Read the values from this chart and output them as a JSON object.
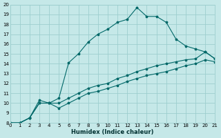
{
  "xlabel": "Humidex (Indice chaleur)",
  "xlim": [
    0,
    21
  ],
  "ylim": [
    8,
    20
  ],
  "xticks": [
    0,
    1,
    2,
    3,
    4,
    5,
    6,
    7,
    8,
    9,
    10,
    11,
    12,
    13,
    14,
    15,
    16,
    17,
    18,
    19,
    20,
    21
  ],
  "yticks": [
    8,
    9,
    10,
    11,
    12,
    13,
    14,
    15,
    16,
    17,
    18,
    19,
    20
  ],
  "background_color": "#c5e8e8",
  "grid_color": "#9dcece",
  "line_color": "#006868",
  "line1_x": [
    0,
    1,
    2,
    3,
    4,
    5,
    6,
    7,
    8,
    9,
    10,
    11,
    12,
    13,
    14,
    15,
    16,
    17,
    18,
    19,
    20,
    21
  ],
  "line1_y": [
    8,
    8,
    8.5,
    10.3,
    10.0,
    10.5,
    14.1,
    15.0,
    16.2,
    17.0,
    17.5,
    18.2,
    18.5,
    19.7,
    18.8,
    18.8,
    18.2,
    16.5,
    15.8,
    15.5,
    15.2,
    14.5
  ],
  "line2_x": [
    0,
    1,
    2,
    3,
    4,
    5,
    6,
    7,
    8,
    9,
    10,
    11,
    12,
    13,
    14,
    15,
    16,
    17,
    18,
    19,
    20,
    21
  ],
  "line2_y": [
    8,
    8,
    8.5,
    10.0,
    10.0,
    10.0,
    10.5,
    11.0,
    11.5,
    11.8,
    12.0,
    12.5,
    12.8,
    13.2,
    13.5,
    13.8,
    14.0,
    14.2,
    14.4,
    14.5,
    15.2,
    14.5
  ],
  "line3_x": [
    0,
    1,
    2,
    3,
    4,
    5,
    6,
    7,
    8,
    9,
    10,
    11,
    12,
    13,
    14,
    15,
    16,
    17,
    18,
    19,
    20,
    21
  ],
  "line3_y": [
    8,
    8,
    8.5,
    10.0,
    10.0,
    9.5,
    10.0,
    10.5,
    11.0,
    11.2,
    11.5,
    11.8,
    12.2,
    12.5,
    12.8,
    13.0,
    13.2,
    13.5,
    13.8,
    14.0,
    14.4,
    14.2
  ],
  "markersize": 2.5
}
